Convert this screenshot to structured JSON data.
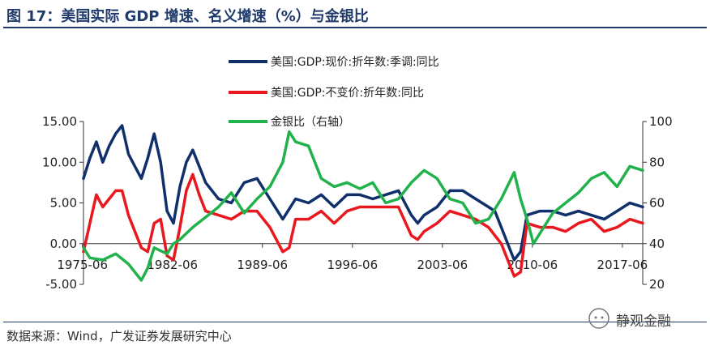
{
  "header": {
    "title": "图 17：美国实际 GDP 增速、名义增速（%）与金银比"
  },
  "footer": {
    "source": "数据来源：Wind，广发证券发展研究中心",
    "watermark": "静观金融"
  },
  "colors": {
    "title": "#1f3a6b",
    "nominal": "#10306b",
    "real": "#e8181e",
    "ratio": "#22b24c"
  },
  "chart_data": {
    "type": "line",
    "xlabel": "",
    "ylabel": "",
    "x_ticks": [
      "1975-06",
      "1982-06",
      "1989-06",
      "1996-06",
      "2003-06",
      "2010-06",
      "2017-06"
    ],
    "x_range": [
      1975.5,
      2019.0
    ],
    "y_left": {
      "ticks": [
        "15.00",
        "10.00",
        "5.00",
        "0.00",
        "-5.00"
      ],
      "range": [
        -5,
        15
      ]
    },
    "y_right": {
      "ticks": [
        "100",
        "80",
        "60",
        "40",
        "20"
      ],
      "range": [
        20,
        100
      ]
    },
    "grid": false,
    "legend_placement": "top-center",
    "series": [
      {
        "name": "美国:GDP:现价:折年数:季调:同比",
        "axis": "left",
        "x": [
          1975.5,
          1976.0,
          1976.5,
          1977.0,
          1977.5,
          1978.0,
          1978.5,
          1979.0,
          1979.5,
          1980.0,
          1980.5,
          1981.0,
          1981.5,
          1982.0,
          1982.5,
          1983.0,
          1983.5,
          1984.0,
          1984.5,
          1985.0,
          1986.0,
          1987.0,
          1988.0,
          1989.0,
          1990.0,
          1991.0,
          1992.0,
          1993.0,
          1994.0,
          1995.0,
          1996.0,
          1997.0,
          1998.0,
          1999.0,
          2000.0,
          2001.0,
          2001.5,
          2002.0,
          2003.0,
          2004.0,
          2005.0,
          2006.0,
          2007.0,
          2007.5,
          2008.0,
          2008.5,
          2009.0,
          2009.5,
          2010.0,
          2011.0,
          2012.0,
          2013.0,
          2014.0,
          2015.0,
          2016.0,
          2017.0,
          2018.0,
          2019.0
        ],
        "values": [
          8.0,
          10.5,
          12.5,
          10.0,
          12.0,
          13.5,
          14.5,
          11.0,
          9.5,
          8.0,
          10.5,
          13.5,
          10.0,
          4.0,
          2.5,
          7.0,
          10.0,
          11.5,
          9.5,
          7.5,
          5.5,
          5.0,
          7.5,
          8.0,
          5.5,
          3.0,
          5.5,
          5.0,
          6.0,
          4.5,
          6.0,
          6.0,
          5.5,
          6.0,
          6.5,
          3.5,
          2.5,
          3.5,
          4.5,
          6.5,
          6.5,
          5.5,
          4.5,
          4.0,
          2.0,
          0.0,
          -2.0,
          -1.0,
          3.5,
          4.0,
          4.0,
          3.5,
          4.0,
          3.5,
          3.0,
          4.0,
          5.0,
          4.5
        ]
      },
      {
        "name": "美国:GDP:不变价:折年数:同比",
        "axis": "left",
        "x": [
          1975.5,
          1976.0,
          1976.5,
          1977.0,
          1977.5,
          1978.0,
          1978.5,
          1979.0,
          1979.5,
          1980.0,
          1980.5,
          1981.0,
          1981.5,
          1982.0,
          1982.5,
          1983.0,
          1983.5,
          1984.0,
          1984.5,
          1985.0,
          1986.0,
          1987.0,
          1988.0,
          1989.0,
          1990.0,
          1991.0,
          1991.5,
          1992.0,
          1993.0,
          1994.0,
          1995.0,
          1996.0,
          1997.0,
          1998.0,
          1999.0,
          2000.0,
          2001.0,
          2001.5,
          2002.0,
          2003.0,
          2004.0,
          2005.0,
          2006.0,
          2007.0,
          2008.0,
          2008.5,
          2009.0,
          2009.5,
          2010.0,
          2011.0,
          2012.0,
          2013.0,
          2014.0,
          2015.0,
          2016.0,
          2017.0,
          2018.0,
          2019.0
        ],
        "values": [
          -1.0,
          2.5,
          6.0,
          4.5,
          5.5,
          6.5,
          6.5,
          3.5,
          1.5,
          -0.5,
          -1.0,
          2.5,
          3.0,
          -1.5,
          -2.0,
          2.0,
          6.5,
          8.5,
          6.0,
          4.0,
          3.5,
          3.0,
          4.0,
          4.0,
          2.0,
          -1.0,
          -0.5,
          3.0,
          3.0,
          4.0,
          2.5,
          4.0,
          4.5,
          4.5,
          4.5,
          4.5,
          1.0,
          0.5,
          1.5,
          2.5,
          4.0,
          3.5,
          3.0,
          2.0,
          0.0,
          -2.0,
          -4.0,
          -3.5,
          2.5,
          2.0,
          2.0,
          1.5,
          2.5,
          3.0,
          1.5,
          2.0,
          3.0,
          2.5
        ]
      },
      {
        "name": "金银比（右轴）",
        "axis": "right",
        "x": [
          1975.5,
          1976.0,
          1977.0,
          1978.0,
          1979.0,
          1980.0,
          1980.5,
          1981.0,
          1982.0,
          1982.5,
          1983.0,
          1984.0,
          1985.0,
          1986.0,
          1987.0,
          1988.0,
          1989.0,
          1990.0,
          1991.0,
          1991.5,
          1992.0,
          1993.0,
          1994.0,
          1995.0,
          1996.0,
          1997.0,
          1998.0,
          1999.0,
          2000.0,
          2001.0,
          2002.0,
          2003.0,
          2004.0,
          2005.0,
          2006.0,
          2007.0,
          2008.0,
          2009.0,
          2009.5,
          2010.0,
          2010.5,
          2011.0,
          2012.0,
          2013.0,
          2014.0,
          2015.0,
          2016.0,
          2017.0,
          2018.0,
          2019.0
        ],
        "values": [
          38,
          33,
          32,
          35,
          30,
          22,
          28,
          38,
          35,
          40,
          42,
          48,
          53,
          58,
          65,
          55,
          62,
          68,
          80,
          95,
          90,
          88,
          72,
          68,
          70,
          67,
          70,
          60,
          62,
          70,
          76,
          72,
          62,
          60,
          50,
          52,
          62,
          75,
          62,
          52,
          40,
          45,
          55,
          60,
          65,
          72,
          75,
          68,
          78,
          76
        ]
      }
    ]
  }
}
